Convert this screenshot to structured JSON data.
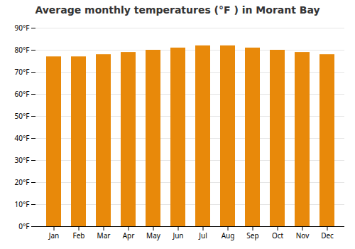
{
  "chart_data": {
    "type": "bar",
    "title": "Average monthly temperatures (°F ) in Morant Bay",
    "categories": [
      "Jan",
      "Feb",
      "Mar",
      "Apr",
      "May",
      "Jun",
      "Jul",
      "Aug",
      "Sep",
      "Oct",
      "Nov",
      "Dec"
    ],
    "values": [
      77,
      77,
      78,
      79,
      80,
      81,
      82,
      82,
      81,
      80,
      79,
      78
    ],
    "color": "#E8890A",
    "ylim": [
      0,
      90
    ],
    "yticks": [
      {
        "value": 0,
        "label": "0°F"
      },
      {
        "value": 10,
        "label": "10°F"
      },
      {
        "value": 20,
        "label": "20°F"
      },
      {
        "value": 30,
        "label": "30°F"
      },
      {
        "value": 40,
        "label": "40°F"
      },
      {
        "value": 50,
        "label": "50°F"
      },
      {
        "value": 60,
        "label": "60°F"
      },
      {
        "value": 70,
        "label": "70°F"
      },
      {
        "value": 80,
        "label": "80°F"
      },
      {
        "value": 90,
        "label": "90°F"
      }
    ],
    "grid": true
  }
}
